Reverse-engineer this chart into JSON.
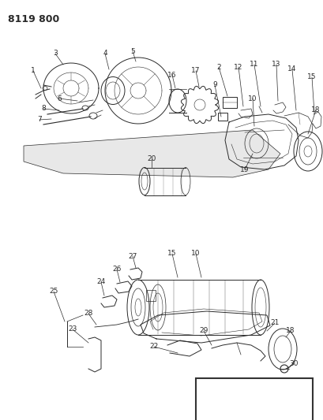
{
  "title": "8119 800",
  "bg_color": "#ffffff",
  "fig_width": 4.1,
  "fig_height": 5.33,
  "dpi": 100,
  "line_color": "#2a2a2a",
  "label_fontsize": 6.5,
  "title_fontsize": 9
}
